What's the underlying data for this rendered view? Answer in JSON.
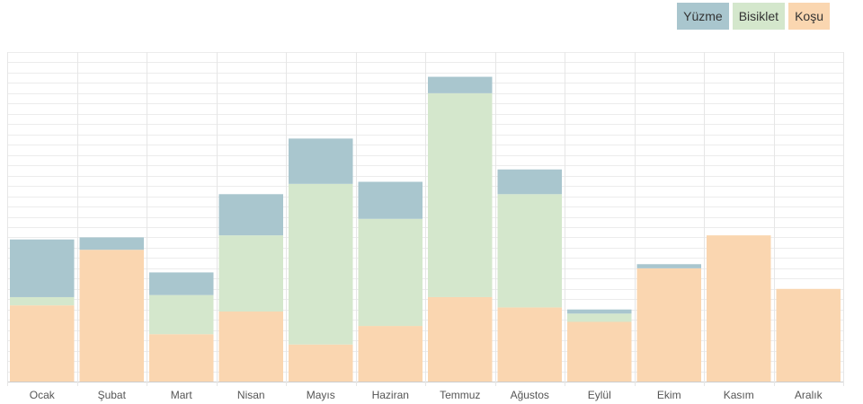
{
  "chart_data": {
    "type": "bar",
    "stacked": true,
    "categories": [
      "Ocak",
      "Şubat",
      "Mart",
      "Nisan",
      "Mayıs",
      "Haziran",
      "Temmuz",
      "Ağustos",
      "Eylül",
      "Ekim",
      "Kasım",
      "Aralık"
    ],
    "series": [
      {
        "name": "Koşu",
        "color": "#fad6b0",
        "values": [
          37,
          64,
          23,
          34,
          18,
          27,
          41,
          36,
          29,
          55,
          71,
          45
        ]
      },
      {
        "name": "Bisiklet",
        "color": "#d4e7cc",
        "values": [
          4,
          0,
          19,
          37,
          78,
          52,
          99,
          55,
          4,
          0,
          0,
          0
        ]
      },
      {
        "name": "Yüzme",
        "color": "#a9c6ce",
        "values": [
          28,
          6,
          11,
          20,
          22,
          18,
          8,
          12,
          2,
          2,
          0,
          0
        ]
      }
    ],
    "ylim": [
      0,
      160
    ],
    "grid": true,
    "legend": "top-right",
    "legend_order": [
      "Yüzme",
      "Bisiklet",
      "Koşu"
    ],
    "title": "",
    "xlabel": "",
    "ylabel": ""
  }
}
